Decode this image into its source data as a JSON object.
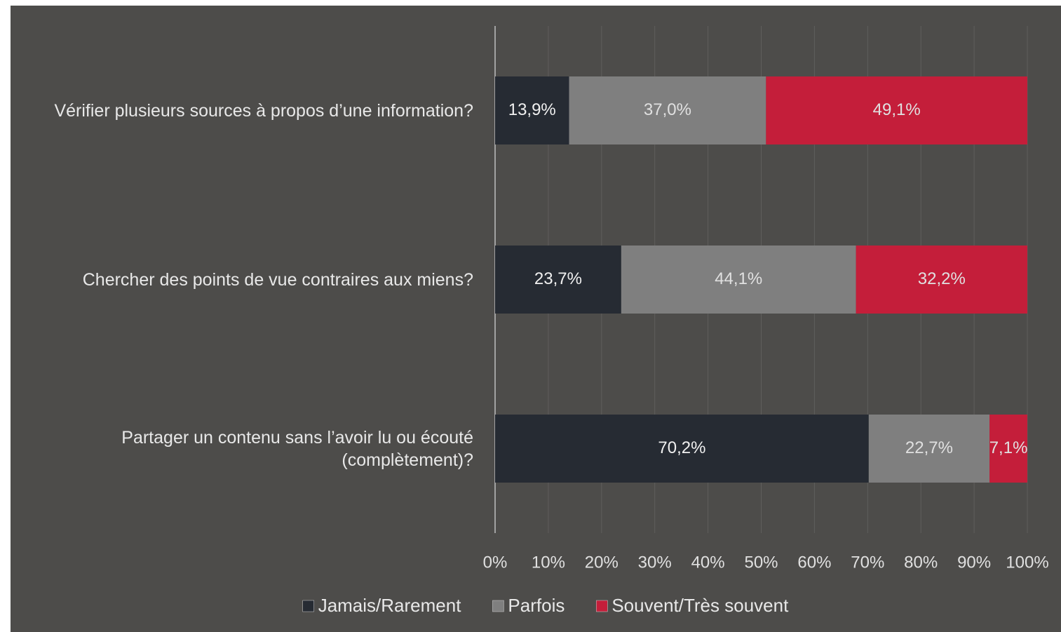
{
  "chart_data": {
    "type": "stacked_barh",
    "categories": [
      "Vérifier plusieurs sources à propos d’une information?",
      "Chercher des points de vue contraires aux miens?",
      "Partager un contenu sans l’avoir lu ou écouté (complètement)?"
    ],
    "series": [
      {
        "name": "Jamais/Rarement",
        "color": "#262b33",
        "values": [
          13.9,
          23.7,
          70.2
        ],
        "value_labels": [
          "13,9%",
          "23,7%",
          "70,2%"
        ]
      },
      {
        "name": "Parfois",
        "color": "#7f7f7f",
        "values": [
          37.0,
          44.1,
          22.7
        ],
        "value_labels": [
          "37,0%",
          "44,1%",
          "22,7%"
        ]
      },
      {
        "name": "Souvent/Très souvent",
        "color": "#c41e3a",
        "values": [
          49.1,
          32.2,
          7.1
        ],
        "value_labels": [
          "49,1%",
          "32,2%",
          "7,1%"
        ]
      }
    ],
    "xlim": [
      0,
      100
    ],
    "xticks": [
      {
        "value": 0,
        "label": "0%"
      },
      {
        "value": 10,
        "label": "10%"
      },
      {
        "value": 20,
        "label": "20%"
      },
      {
        "value": 30,
        "label": "30%"
      },
      {
        "value": 40,
        "label": "40%"
      },
      {
        "value": 50,
        "label": "50%"
      },
      {
        "value": 60,
        "label": "60%"
      },
      {
        "value": 70,
        "label": "70%"
      },
      {
        "value": 80,
        "label": "80%"
      },
      {
        "value": 90,
        "label": "90%"
      },
      {
        "value": 100,
        "label": "100%"
      }
    ],
    "grid": true,
    "legend": "bottom"
  }
}
